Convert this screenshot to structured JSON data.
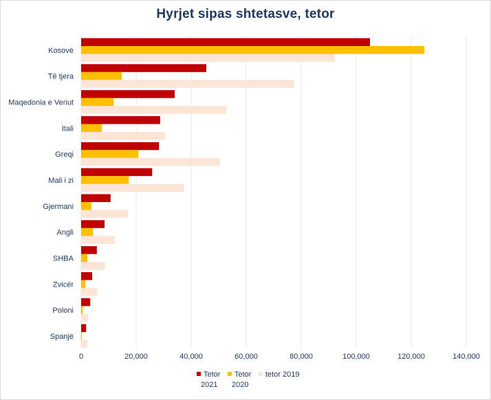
{
  "chart_data": {
    "type": "bar",
    "orientation": "horizontal",
    "title": "Hyrjet sipas shtetasve, tetor",
    "xlabel": "",
    "ylabel": "",
    "xlim": [
      0,
      140000
    ],
    "ticks": [
      0,
      20000,
      40000,
      60000,
      80000,
      100000,
      120000,
      140000
    ],
    "tick_labels": [
      "0",
      "20,000",
      "40,000",
      "60,000",
      "80,000",
      "100,000",
      "120,000",
      "140,000"
    ],
    "grid": "vertical",
    "legend_position": "bottom",
    "categories": [
      "Kosovë",
      "Të tjera",
      "Maqedonia e Veriut",
      "Itali",
      "Greqi",
      "Mali i zi",
      "Gjermani",
      "Angli",
      "SHBA",
      "Zvicër",
      "Poloni",
      "Spanjë"
    ],
    "series": [
      {
        "name": "Tetor 2021",
        "legend_lines": [
          "Tetor",
          "2021"
        ],
        "color": "#c00000",
        "values": [
          105000,
          45500,
          34000,
          28700,
          28300,
          25800,
          10700,
          8500,
          5700,
          4000,
          3300,
          1800
        ]
      },
      {
        "name": "Tetor 2020",
        "legend_lines": [
          "Tetor",
          "2020"
        ],
        "color": "#ffc000",
        "values": [
          124800,
          14800,
          11800,
          7500,
          20800,
          17300,
          3700,
          4300,
          2300,
          1500,
          600,
          300
        ]
      },
      {
        "name": "tetor 2019",
        "legend_lines": [
          "tetor 2019"
        ],
        "color": "#fbe5d6",
        "values": [
          92200,
          77500,
          52800,
          30600,
          50500,
          37400,
          17000,
          12200,
          8700,
          5800,
          2600,
          2300
        ]
      }
    ]
  }
}
